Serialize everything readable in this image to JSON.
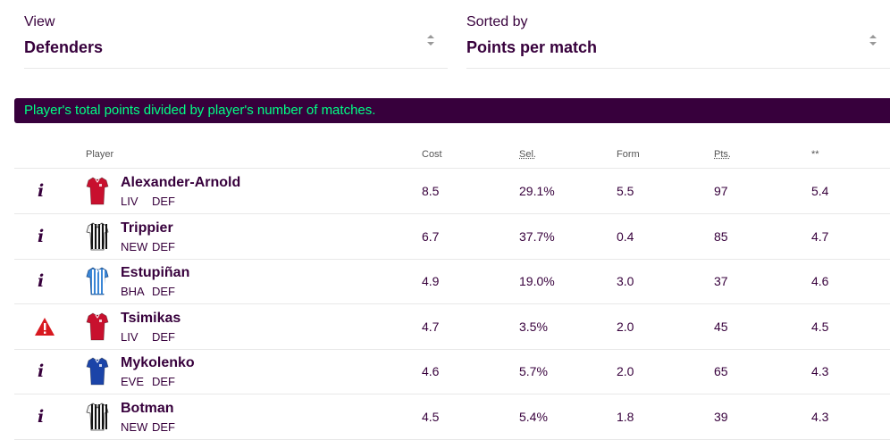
{
  "filters": {
    "view": {
      "label": "View",
      "value": "Defenders"
    },
    "sort": {
      "label": "Sorted by",
      "value": "Points per match"
    }
  },
  "banner": {
    "text": "Player's total points divided by player's number of matches."
  },
  "table": {
    "headers": {
      "player": "Player",
      "cost": "Cost",
      "sel": "Sel.",
      "form": "Form",
      "pts": "Pts.",
      "stat": "**"
    },
    "rows": [
      {
        "status": "info",
        "name": "Alexander-Arnold",
        "team": "LIV",
        "pos": "DEF",
        "cost": "8.5",
        "sel": "29.1%",
        "form": "5.5",
        "pts": "97",
        "stat": "5.4",
        "kit": "liverpool"
      },
      {
        "status": "info",
        "name": "Trippier",
        "team": "NEW",
        "pos": "DEF",
        "cost": "6.7",
        "sel": "37.7%",
        "form": "0.4",
        "pts": "85",
        "stat": "4.7",
        "kit": "newcastle"
      },
      {
        "status": "info",
        "name": "Estupiñan",
        "team": "BHA",
        "pos": "DEF",
        "cost": "4.9",
        "sel": "19.0%",
        "form": "3.0",
        "pts": "37",
        "stat": "4.6",
        "kit": "brighton"
      },
      {
        "status": "warning",
        "name": "Tsimikas",
        "team": "LIV",
        "pos": "DEF",
        "cost": "4.7",
        "sel": "3.5%",
        "form": "2.0",
        "pts": "45",
        "stat": "4.5",
        "kit": "liverpool"
      },
      {
        "status": "info",
        "name": "Mykolenko",
        "team": "EVE",
        "pos": "DEF",
        "cost": "4.6",
        "sel": "5.7%",
        "form": "2.0",
        "pts": "65",
        "stat": "4.3",
        "kit": "everton"
      },
      {
        "status": "info",
        "name": "Botman",
        "team": "NEW",
        "pos": "DEF",
        "cost": "4.5",
        "sel": "5.4%",
        "form": "1.8",
        "pts": "39",
        "stat": "4.3",
        "kit": "newcastle"
      }
    ]
  },
  "colors": {
    "primary": "#37003c",
    "accent": "#00ff85",
    "warning": "#d81920",
    "liverpool": "#c8102e",
    "everton": "#1b44a8",
    "brighton": "#3a86d6"
  }
}
